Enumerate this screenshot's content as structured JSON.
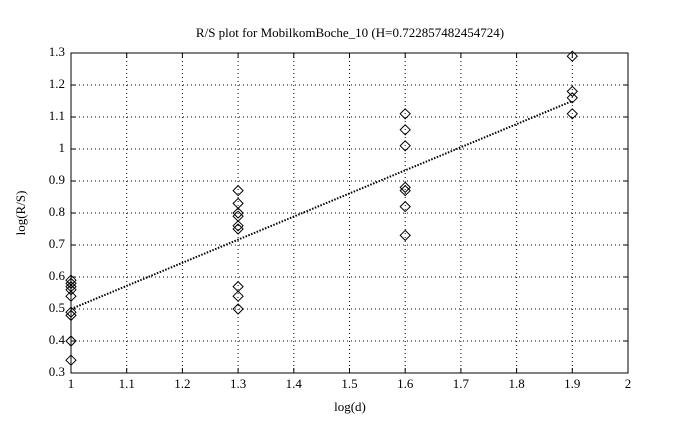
{
  "chart_data": {
    "type": "scatter",
    "title": "R/S plot for MobilkomBoche_10 (H=0.722857482454724)",
    "x_label": "log(d)",
    "y_label": "log(R/S)",
    "xlim": [
      1,
      2
    ],
    "ylim": [
      0.3,
      1.3
    ],
    "xticks": [
      1,
      1.1,
      1.2,
      1.3,
      1.4,
      1.5,
      1.6,
      1.7,
      1.8,
      1.9,
      2
    ],
    "yticks": [
      0.3,
      0.4,
      0.5,
      0.6,
      0.7,
      0.8,
      0.9,
      1,
      1.1,
      1.2,
      1.3
    ],
    "grid": true,
    "series": [
      {
        "marker": "diamond",
        "color": "#000000",
        "x": [
          1,
          1,
          1,
          1,
          1,
          1,
          1,
          1,
          1,
          1.3,
          1.3,
          1.3,
          1.3,
          1.3,
          1.3,
          1.3,
          1.3,
          1.3,
          1.6,
          1.6,
          1.6,
          1.6,
          1.6,
          1.6,
          1.6,
          1.9,
          1.9,
          1.9,
          1.9
        ],
        "values": [
          0.59,
          0.58,
          0.57,
          0.56,
          0.54,
          0.49,
          0.48,
          0.4,
          0.34,
          0.87,
          0.83,
          0.8,
          0.79,
          0.76,
          0.75,
          0.57,
          0.54,
          0.5,
          1.11,
          1.06,
          1.01,
          0.88,
          0.87,
          0.82,
          0.73,
          1.29,
          1.18,
          1.16,
          1.11
        ]
      },
      {
        "line": "dotted",
        "color": "#000000",
        "x": [
          1,
          1.9
        ],
        "values": [
          0.5,
          1.15
        ]
      }
    ]
  }
}
